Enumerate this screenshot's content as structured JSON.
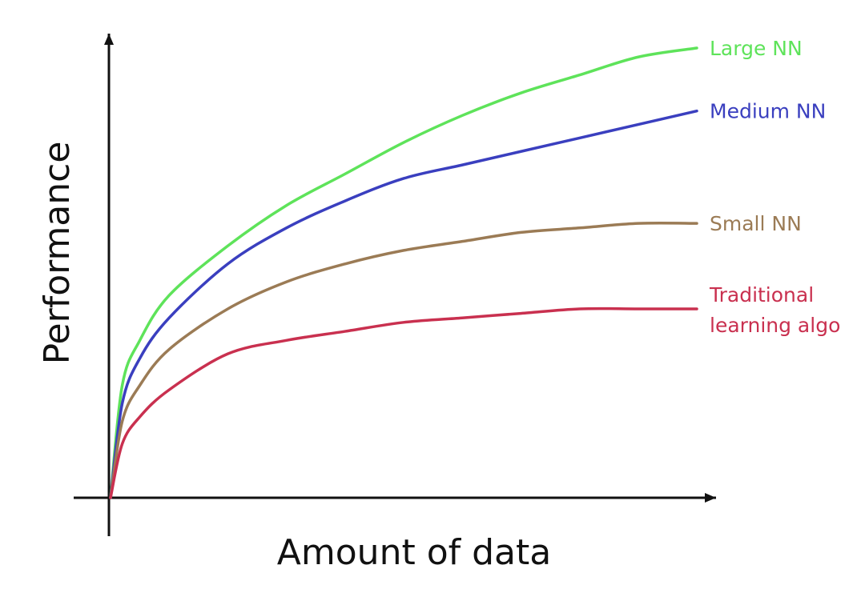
{
  "chart_data": {
    "type": "line",
    "xlabel": "Amount of data",
    "ylabel": "Performance",
    "series": [
      {
        "name": "Large NN",
        "label_lines": [
          "Large NN"
        ],
        "color": "#5ee35a",
        "x": [
          0,
          0.02,
          0.05,
          0.1,
          0.2,
          0.3,
          0.4,
          0.5,
          0.6,
          0.7,
          0.8,
          0.9,
          1.0
        ],
        "values": [
          0,
          0.25,
          0.35,
          0.45,
          0.56,
          0.65,
          0.72,
          0.79,
          0.85,
          0.9,
          0.94,
          0.98,
          1.0
        ]
      },
      {
        "name": "Medium NN",
        "label_lines": [
          "Medium NN"
        ],
        "color": "#3a3fbf",
        "x": [
          0,
          0.02,
          0.05,
          0.1,
          0.2,
          0.3,
          0.4,
          0.5,
          0.6,
          0.7,
          0.8,
          0.9,
          1.0
        ],
        "values": [
          0,
          0.21,
          0.31,
          0.4,
          0.52,
          0.6,
          0.66,
          0.71,
          0.74,
          0.77,
          0.8,
          0.83,
          0.86
        ]
      },
      {
        "name": "Small NN",
        "label_lines": [
          "Small NN"
        ],
        "color": "#9b7b55",
        "x": [
          0,
          0.02,
          0.05,
          0.1,
          0.2,
          0.3,
          0.4,
          0.5,
          0.6,
          0.7,
          0.8,
          0.9,
          1.0
        ],
        "values": [
          0,
          0.17,
          0.25,
          0.33,
          0.42,
          0.48,
          0.52,
          0.55,
          0.57,
          0.59,
          0.6,
          0.61,
          0.61
        ]
      },
      {
        "name": "Traditional learning algo",
        "label_lines": [
          "Traditional",
          "learning algo"
        ],
        "color": "#c9304f",
        "x": [
          0,
          0.02,
          0.05,
          0.1,
          0.2,
          0.3,
          0.4,
          0.5,
          0.6,
          0.7,
          0.8,
          0.9,
          1.0
        ],
        "values": [
          0,
          0.12,
          0.18,
          0.24,
          0.32,
          0.35,
          0.37,
          0.39,
          0.4,
          0.41,
          0.42,
          0.42,
          0.42
        ]
      }
    ],
    "xlim": [
      0,
      1
    ],
    "ylim": [
      0,
      1
    ],
    "grid": false,
    "legend": "labels at line ends (right)",
    "axis_color": "#111111"
  }
}
